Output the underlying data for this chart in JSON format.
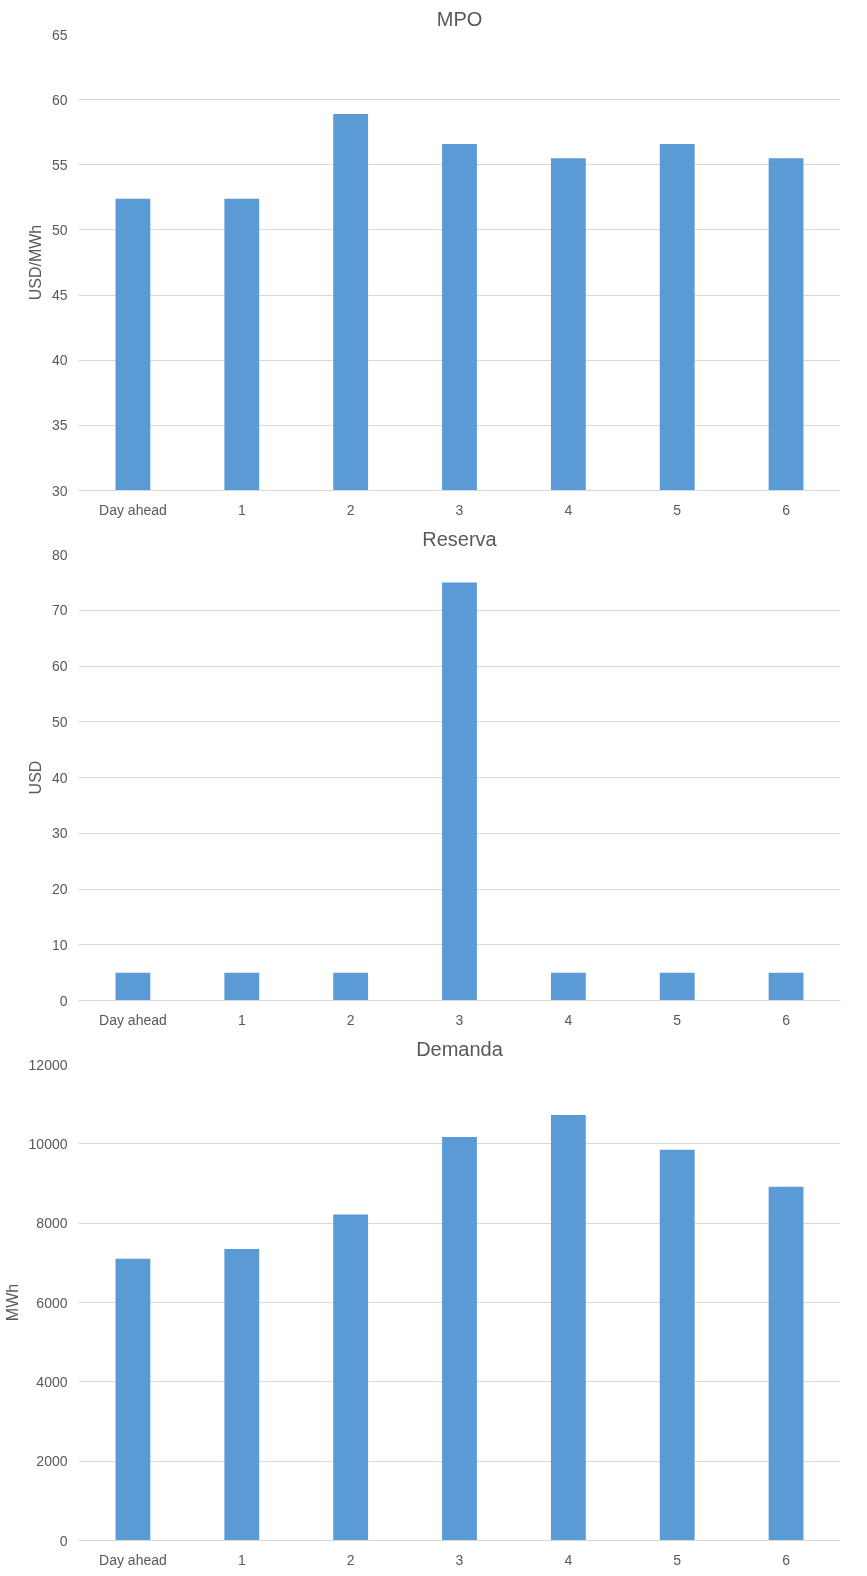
{
  "chart_data": [
    {
      "type": "bar",
      "title": "MPO",
      "ylabel": "USD/MWh",
      "categories": [
        "Day ahead",
        "1",
        "2",
        "3",
        "4",
        "5",
        "6"
      ],
      "values": [
        52.4,
        52.4,
        58.9,
        56.6,
        55.5,
        56.6,
        55.5
      ],
      "color": "#5b9bd5",
      "ylim": [
        30,
        65
      ],
      "yticks": [
        30,
        35,
        40,
        45,
        50,
        55,
        60,
        65
      ],
      "grid": "y"
    },
    {
      "type": "bar",
      "title": "Reserva",
      "ylabel": "USD",
      "categories": [
        "Day ahead",
        "1",
        "2",
        "3",
        "4",
        "5",
        "6"
      ],
      "values": [
        5,
        5,
        5,
        75,
        5,
        5,
        5
      ],
      "color": "#5b9bd5",
      "ylim": [
        0,
        80
      ],
      "yticks": [
        0,
        10,
        20,
        30,
        40,
        50,
        60,
        70,
        80
      ],
      "grid": "y"
    },
    {
      "type": "bar",
      "title": "Demanda",
      "ylabel": "MWh",
      "categories": [
        "Day ahead",
        "1",
        "2",
        "3",
        "4",
        "5",
        "6"
      ],
      "values": [
        7100,
        7350,
        8220,
        10170,
        10730,
        9850,
        8920
      ],
      "color": "#5b9bd5",
      "ylim": [
        0,
        12000
      ],
      "yticks": [
        0,
        2000,
        4000,
        6000,
        8000,
        10000,
        12000
      ],
      "grid": "y"
    }
  ]
}
